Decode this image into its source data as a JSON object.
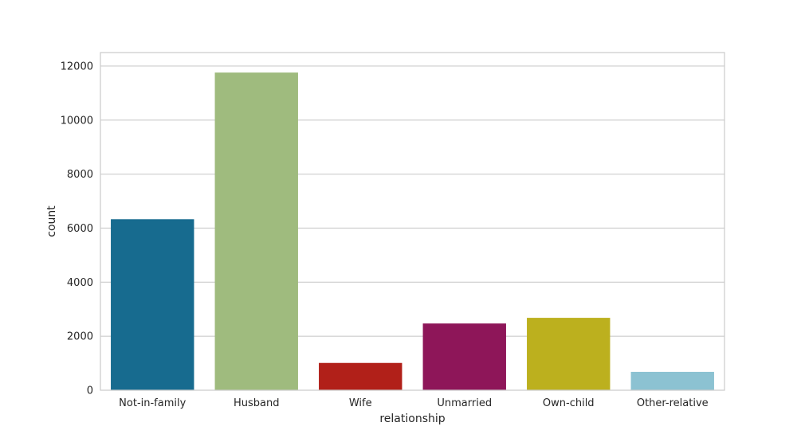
{
  "chart_data": {
    "type": "bar",
    "title": "",
    "xlabel": "relationship",
    "ylabel": "count",
    "categories": [
      "Not-in-family",
      "Husband",
      "Wife",
      "Unmarried",
      "Own-child",
      "Other-relative"
    ],
    "values": [
      6330,
      11760,
      1010,
      2470,
      2680,
      680
    ],
    "colors": [
      "#176b8f",
      "#9fbb7e",
      "#b12019",
      "#8e1659",
      "#bcb01e",
      "#8cc2d2"
    ],
    "ylim": [
      0,
      12500
    ],
    "yticks": [
      0,
      2000,
      4000,
      6000,
      8000,
      10000,
      12000
    ],
    "ytick_labels": [
      "0",
      "2000",
      "4000",
      "6000",
      "8000",
      "10000",
      "12000"
    ],
    "grid": true,
    "grid_axis": "y",
    "grid_color": "#cccccc",
    "frame_color": "#cccccc",
    "text_color": "#262626"
  }
}
